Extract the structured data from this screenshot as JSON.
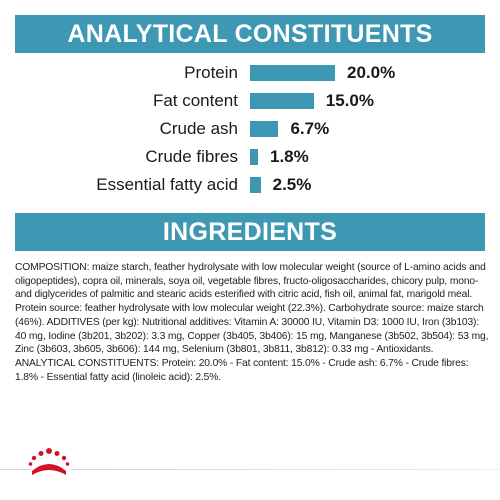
{
  "analytical": {
    "title": "ANALYTICAL CONSTITUENTS",
    "rows": [
      {
        "label": "Protein",
        "value_label": "20.0%",
        "value": 20.0
      },
      {
        "label": "Fat content",
        "value_label": "15.0%",
        "value": 15.0
      },
      {
        "label": "Crude ash",
        "value_label": "6.7%",
        "value": 6.7
      },
      {
        "label": "Crude fibres",
        "value_label": "1.8%",
        "value": 1.8
      },
      {
        "label": "Essential fatty acid",
        "value_label": "2.5%",
        "value": 2.5
      }
    ]
  },
  "chart_data": {
    "type": "bar",
    "categories": [
      "Protein",
      "Fat content",
      "Crude ash",
      "Crude fibres",
      "Essential fatty acid"
    ],
    "values": [
      20.0,
      15.0,
      6.7,
      1.8,
      2.5
    ],
    "title": "ANALYTICAL CONSTITUENTS",
    "xlabel": "",
    "ylabel": "",
    "bar_color": "#3e98b4"
  },
  "ingredients": {
    "title": "INGREDIENTS",
    "text": "COMPOSITION: maize starch, feather hydrolysate with low molecular weight (source of L-amino acids and oligopeptides), copra oil, minerals, soya oil, vegetable fibres, fructo-oligosaccharides, chicory pulp, mono- and diglycerides of palmitic and stearic acids esterified with citric acid, fish oil, animal fat, marigold meal. Protein source: feather hydrolysate with low molecular weight (22.3%). Carbohydrate source: maize starch (46%). ADDITIVES (per kg): Nutritional additives: Vitamin A: 30000 IU, Vitamin D3: 1000 IU, Iron (3b103): 40 mg, Iodine (3b201, 3b202): 3.3 mg, Copper (3b405, 3b406): 15 mg, Manganese (3b502, 3b504): 53 mg, Zinc (3b603, 3b605, 3b606): 144 mg, Selenium (3b801, 3b811, 3b812): 0.33 mg - Antioxidants. ANALYTICAL CONSTITUENTS: Protein: 20.0% - Fat content: 15.0% - Crude ash: 6.7% - Crude fibres: 1.8% - Essential fatty acid (linoleic acid): 2.5%."
  },
  "colors": {
    "accent": "#3e98b4",
    "logo": "#d3122a"
  },
  "logo": {
    "icon": "crown-icon"
  }
}
